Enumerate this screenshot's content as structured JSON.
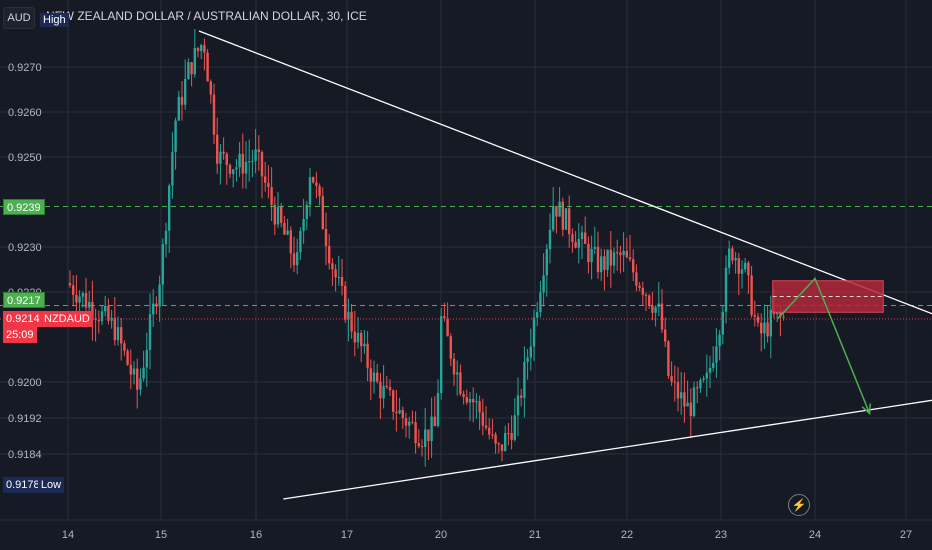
{
  "header": {
    "currency_badge": "AUD",
    "title": "NEW ZEALAND DOLLAR / AUSTRALIAN DOLLAR, 30, ICE",
    "high_label": "High",
    "low_label": "Low"
  },
  "price_tags": {
    "level_upper": "0.9239",
    "level_lower": "0.9217",
    "current_price": "0.9214",
    "symbol": "NZDAUD",
    "countdown": "25:09",
    "low_value": "0.9178"
  },
  "icons": {
    "flash": "lightning-icon"
  },
  "colors": {
    "background": "#161a25",
    "up_candle": "#26a69a",
    "down_candle": "#ef5350",
    "grid": "#2a2e39",
    "axis_text": "#b2b5be",
    "level_line": "#4caf50",
    "price_line": "#f23645",
    "zone": "#b2283a",
    "projection": "#4caf50",
    "trendline": "#ffffff"
  },
  "chart_data": {
    "type": "candlestick",
    "title": "NEW ZEALAND DOLLAR / AUSTRALIAN DOLLAR, 30, ICE",
    "y_axis_ticks": [
      "0.9270",
      "0.9260",
      "0.9250",
      "0.9230",
      "0.9220",
      "0.9200",
      "0.9192",
      "0.9184"
    ],
    "x_axis_ticks": [
      "14",
      "15",
      "16",
      "17",
      "20",
      "21",
      "22",
      "23",
      "24",
      "27"
    ],
    "ylim": [
      0.917,
      0.928
    ],
    "grid": true,
    "price_path": [
      [
        "14",
        0.9222
      ],
      [
        "14.5",
        0.9212
      ],
      [
        "14.75",
        0.9198
      ],
      [
        "15",
        0.9225
      ],
      [
        "15.15",
        0.9258
      ],
      [
        "15.3",
        0.927
      ],
      [
        "15.45",
        0.9276
      ],
      [
        "15.6",
        0.925
      ],
      [
        "15.8",
        0.9248
      ],
      [
        "16",
        0.925
      ],
      [
        "16.2",
        0.9238
      ],
      [
        "16.45",
        0.9226
      ],
      [
        "16.6",
        0.9248
      ],
      [
        "16.85",
        0.9225
      ],
      [
        "17",
        0.9215
      ],
      [
        "17.3",
        0.92
      ],
      [
        "17.6",
        0.9192
      ],
      [
        "17.8",
        0.9188
      ],
      [
        "17.95",
        0.919
      ],
      [
        "20",
        0.9214
      ],
      [
        "20.2",
        0.92
      ],
      [
        "20.4",
        0.9194
      ],
      [
        "20.6",
        0.9184
      ],
      [
        "20.8",
        0.9192
      ],
      [
        "21",
        0.9215
      ],
      [
        "21.2",
        0.924
      ],
      [
        "21.45",
        0.9232
      ],
      [
        "21.7",
        0.9226
      ],
      [
        "21.95",
        0.9228
      ],
      [
        "22.15",
        0.9222
      ],
      [
        "22.35",
        0.9215
      ],
      [
        "22.45",
        0.92
      ],
      [
        "22.65",
        0.9194
      ],
      [
        "22.85",
        0.92
      ],
      [
        "23",
        0.9215
      ],
      [
        "23.1",
        0.923
      ],
      [
        "23.25",
        0.9225
      ],
      [
        "23.4",
        0.921
      ],
      [
        "23.55",
        0.9214
      ],
      [
        "23.7",
        0.9214
      ]
    ],
    "horizontal_levels": [
      0.9239,
      0.9217
    ],
    "current_price": 0.9214,
    "trendlines": [
      {
        "from": [
          "15.4",
          0.9278
        ],
        "to": [
          "27.3",
          0.9215
        ]
      },
      {
        "from": [
          "16.3",
          0.9174
        ],
        "to": [
          "27.3",
          0.9196
        ]
      }
    ],
    "supply_zone": {
      "from": "23.55",
      "to": "24.75",
      "high": 0.92225,
      "low": 0.92155
    },
    "projection": [
      [
        "23.6",
        0.9214
      ],
      [
        "24.0",
        0.9223
      ],
      [
        "24.6",
        0.9193
      ]
    ]
  }
}
